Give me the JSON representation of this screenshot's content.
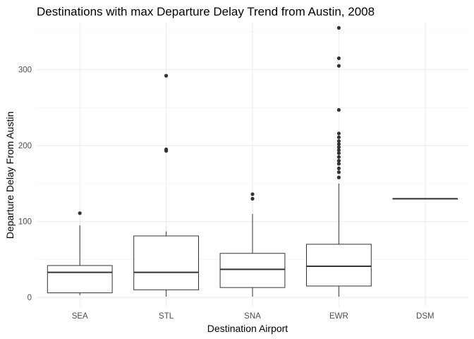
{
  "chart_data": {
    "type": "boxplot",
    "title": "Destinations with max Departure Delay Trend from Austin, 2008",
    "xlabel": "Destination Airport",
    "ylabel": "Departure Delay From Austin",
    "categories": [
      "SEA",
      "STL",
      "SNA",
      "EWR",
      "DSM"
    ],
    "ylim": [
      -12,
      362
    ],
    "yticks": [
      0,
      100,
      200,
      300
    ],
    "grid": true,
    "boxes": [
      {
        "category": "SEA",
        "min": 3,
        "q1": 6,
        "median": 33,
        "q3": 42,
        "max": 95,
        "outliers": [
          111
        ]
      },
      {
        "category": "STL",
        "min": 1,
        "q1": 10,
        "median": 33,
        "q3": 81,
        "max": 87,
        "outliers": [
          193,
          195,
          292
        ]
      },
      {
        "category": "SNA",
        "min": 1,
        "q1": 13,
        "median": 37,
        "q3": 58,
        "max": 110,
        "outliers": [
          130,
          136
        ]
      },
      {
        "category": "EWR",
        "min": 1,
        "q1": 15,
        "median": 41,
        "q3": 70,
        "max": 150,
        "outliers": [
          158,
          165,
          170,
          176,
          180,
          185,
          190,
          194,
          198,
          202,
          206,
          211,
          216,
          247,
          305,
          315,
          355
        ]
      },
      {
        "category": "DSM",
        "min": 130,
        "q1": 130,
        "median": 130,
        "q3": 130,
        "max": 130,
        "outliers": []
      }
    ]
  }
}
